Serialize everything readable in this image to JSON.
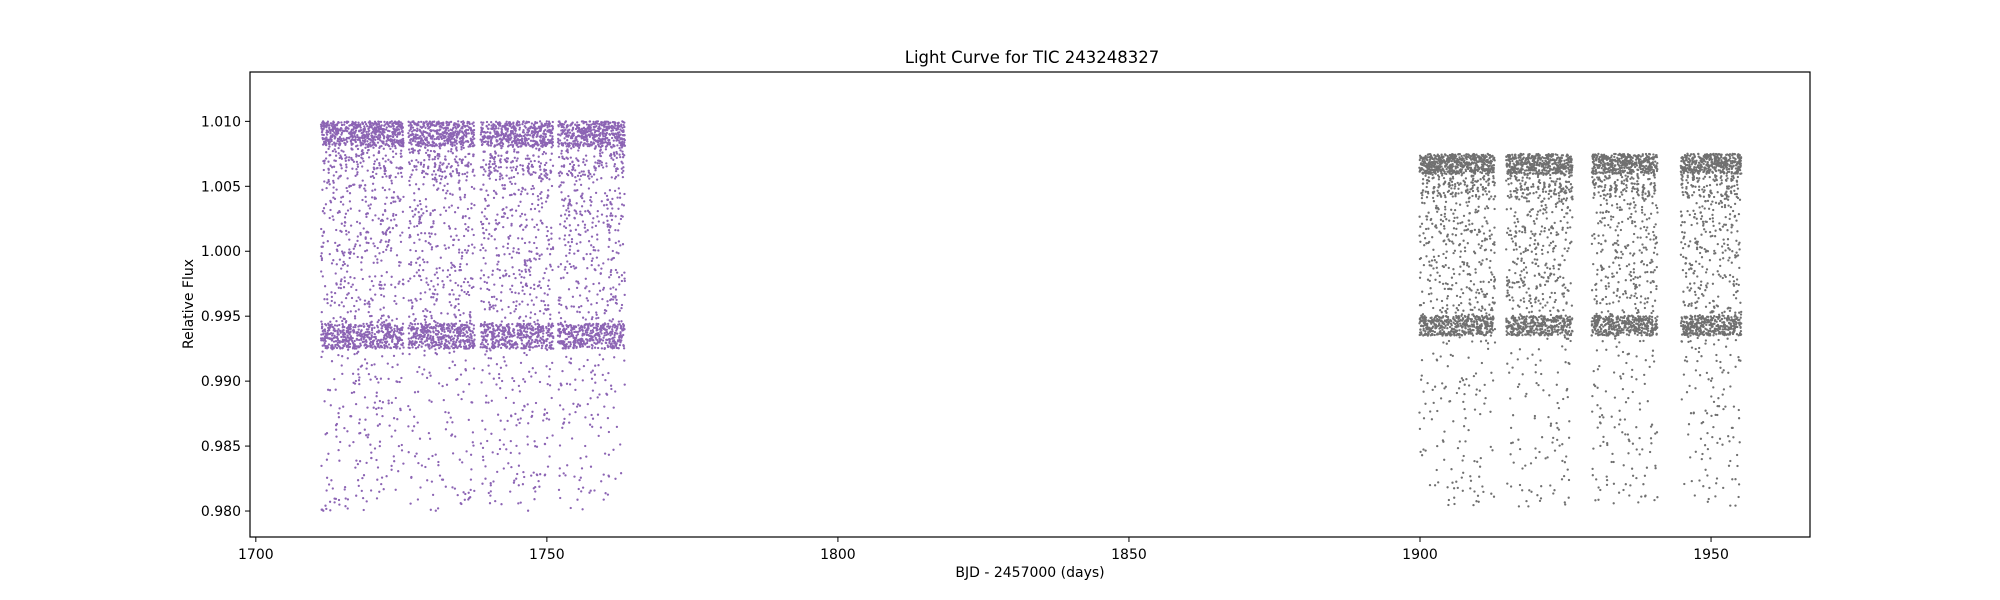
{
  "chart_data": {
    "type": "scatter",
    "title": "Light Curve for TIC 243248327",
    "xlabel": "BJD - 2457000 (days)",
    "ylabel": "Relative Flux",
    "xlim": [
      1699,
      1967
    ],
    "ylim": [
      0.978,
      1.0138
    ],
    "xticks": [
      1700,
      1750,
      1800,
      1850,
      1900,
      1950
    ],
    "xtick_labels": [
      "1700",
      "1750",
      "1800",
      "1850",
      "1900",
      "1950"
    ],
    "yticks": [
      0.98,
      0.985,
      0.99,
      0.995,
      1.0,
      1.005,
      1.01
    ],
    "ytick_labels": [
      "0.980",
      "0.985",
      "0.990",
      "0.995",
      "1.000",
      "1.005",
      "1.010"
    ],
    "grid": false,
    "legend": "none",
    "colors": {
      "segment_1": "#8c64b4",
      "segment_2": "#707070"
    },
    "series": [
      {
        "color": "#8c64b4",
        "x_range": [
          1711.2,
          1763.4
        ],
        "flux_range": [
          0.98,
          1.0115
        ],
        "core_range": [
          0.9925,
          1.01
        ],
        "gaps": [
          [
            1725.4,
            1726.2
          ],
          [
            1737.6,
            1738.6
          ],
          [
            1751.1,
            1751.9
          ]
        ],
        "oscillation_period_days": 0.95
      },
      {
        "color": "#707070",
        "x_range": [
          1899.9,
          1955.2
        ],
        "flux_range": [
          0.9803,
          1.0105
        ],
        "core_range": [
          0.9935,
          1.0075
        ],
        "gaps": [
          [
            1912.9,
            1914.8
          ],
          [
            1926.2,
            1929.5
          ],
          [
            1940.8,
            1944.8
          ]
        ],
        "oscillation_period_days": 0.95
      }
    ]
  }
}
